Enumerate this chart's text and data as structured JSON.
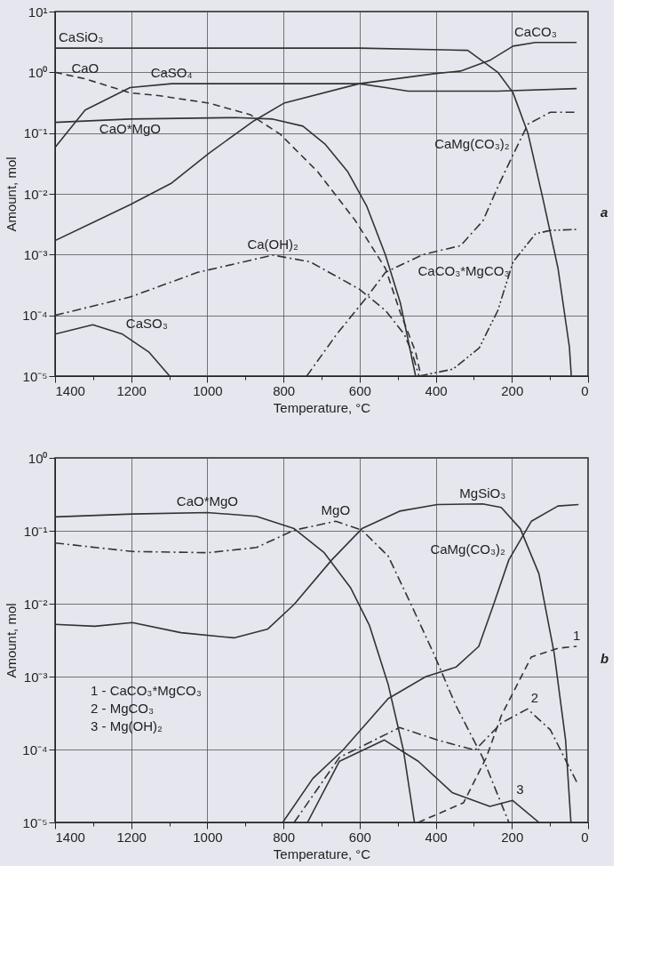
{
  "chart_data": [
    {
      "type": "line",
      "xlabel": "Temperature, °C",
      "ylabel": "Amount, mol",
      "log": "y",
      "grid": true,
      "legend": false,
      "xlim": [
        1400,
        0
      ],
      "ylim": [
        1e-05,
        10
      ],
      "xticks": [
        1400,
        {
          "value": 1300,
          "label": null
        },
        1200,
        {
          "value": 1100,
          "label": null
        },
        1000,
        {
          "value": 900,
          "label": null
        },
        800,
        {
          "value": 700,
          "label": null
        },
        600,
        {
          "value": 500,
          "label": null
        },
        400,
        {
          "value": 300,
          "label": null
        },
        200,
        {
          "value": 100,
          "label": null
        },
        0
      ],
      "yticks": [
        {
          "value": 1e-05,
          "label": "10⁻⁵"
        },
        {
          "value": 0.0001,
          "label": "10⁻⁴"
        },
        {
          "value": 0.001,
          "label": "10⁻³"
        },
        {
          "value": 0.01,
          "label": "10⁻²"
        },
        {
          "value": 0.1,
          "label": "10⁻¹"
        },
        {
          "value": 1,
          "label": "10⁰"
        },
        {
          "value": 10,
          "label": "10¹"
        }
      ],
      "annotations": [
        "a"
      ],
      "series": [
        {
          "name": "CaSiO₃",
          "color": "#333333",
          "line_style": "solid",
          "x": [
            1400,
            1000,
            600,
            316,
            237,
            197,
            158,
            118,
            79,
            49,
            44
          ],
          "values": [
            2.5,
            2.5,
            2.5,
            2.3,
            1.0,
            0.46,
            0.1,
            0.008,
            0.0006,
            3e-05,
            1e-05
          ]
        },
        {
          "name": "CaCO₃",
          "color": "#333333",
          "line_style": "solid",
          "x": [
            1400,
            1203,
            1094,
            995,
            877,
            799,
            601,
            404,
            335,
            256,
            197,
            138,
            30
          ],
          "values": [
            0.0017,
            0.0066,
            0.015,
            0.047,
            0.16,
            0.31,
            0.65,
            0.95,
            1.05,
            1.6,
            2.7,
            3.1,
            3.1
          ]
        },
        {
          "name": "CaSO₄",
          "color": "#333333",
          "line_style": "solid",
          "x": [
            1400,
            1321,
            1203,
            1094,
            601,
            532,
            473,
            237,
            30
          ],
          "values": [
            0.058,
            0.24,
            0.56,
            0.65,
            0.65,
            0.56,
            0.49,
            0.49,
            0.54
          ]
        },
        {
          "name": "CaO",
          "color": "#333333",
          "line_style": "dashed",
          "x": [
            1400,
            1321,
            1203,
            1124,
            995,
            887,
            808,
            710,
            611,
            532,
            493,
            453,
            439
          ],
          "values": [
            1.0,
            0.78,
            0.46,
            0.41,
            0.31,
            0.2,
            0.095,
            0.023,
            0.0036,
            0.00059,
            0.00011,
            2.5e-05,
            1e-05
          ]
        },
        {
          "name": "CaO*MgO",
          "color": "#333333",
          "line_style": "solid",
          "x": [
            1400,
            1203,
            926,
            828,
            749,
            690,
            631,
            581,
            532,
            493,
            453
          ],
          "values": [
            0.15,
            0.17,
            0.18,
            0.17,
            0.13,
            0.065,
            0.023,
            0.0062,
            0.00098,
            0.00016,
            1e-05
          ]
        },
        {
          "name": "Ca(OH)₂",
          "color": "#333333",
          "line_style": "dashdot",
          "x": [
            1400,
            1203,
            1025,
            828,
            730,
            601,
            532,
            483,
            463,
            444
          ],
          "values": [
            0.0001,
            0.0002,
            0.00051,
            0.00098,
            0.00076,
            0.00027,
            0.00012,
            4.9e-05,
            2.5e-05,
            1e-05
          ]
        },
        {
          "name": "CaMg(CO₃)₂",
          "color": "#333333",
          "line_style": "dashdot",
          "x": [
            739,
            660,
            581,
            532,
            434,
            335,
            276,
            237,
            197,
            158,
            99,
            30
          ],
          "values": [
            1e-05,
            4.9e-05,
            0.0002,
            0.00051,
            0.001,
            0.0014,
            0.0036,
            0.013,
            0.044,
            0.14,
            0.22,
            0.22
          ]
        },
        {
          "name": "CaCO₃*MgCO₃",
          "color": "#333333",
          "line_style": "dashdotdot",
          "x": [
            444,
            355,
            286,
            237,
            197,
            138,
            99,
            30
          ],
          "values": [
            1e-05,
            1.3e-05,
            2.9e-05,
            0.00012,
            0.00076,
            0.0022,
            0.0025,
            0.0026
          ]
        },
        {
          "name": "CaSO₃",
          "color": "#333333",
          "line_style": "solid",
          "x": [
            1400,
            1301,
            1223,
            1154,
            1099
          ],
          "values": [
            4.9e-05,
            7e-05,
            4.9e-05,
            2.5e-05,
            1e-05
          ]
        }
      ]
    },
    {
      "type": "line",
      "xlabel": "Temperature, °C",
      "ylabel": "Amount, mol",
      "log": "y",
      "grid": true,
      "legend": false,
      "xlim": [
        1400,
        0
      ],
      "ylim": [
        1e-05,
        1
      ],
      "xticks": [
        1400,
        {
          "value": 1300,
          "label": null
        },
        1200,
        {
          "value": 1100,
          "label": null
        },
        1000,
        {
          "value": 900,
          "label": null
        },
        800,
        {
          "value": 700,
          "label": null
        },
        600,
        {
          "value": 500,
          "label": null
        },
        400,
        {
          "value": 300,
          "label": null
        },
        200,
        {
          "value": 100,
          "label": null
        },
        0
      ],
      "yticks": [
        {
          "value": 1e-05,
          "label": "10⁻⁵"
        },
        {
          "value": 0.0001,
          "label": "10⁻⁴"
        },
        {
          "value": 0.001,
          "label": "10⁻³"
        },
        {
          "value": 0.01,
          "label": "10⁻²"
        },
        {
          "value": 0.1,
          "label": "10⁻¹"
        },
        {
          "value": 1,
          "label": "10⁰"
        }
      ],
      "annotations": [
        "1 - CaCO₃*MgCO₃",
        "2 - MgCO₃",
        "3 - Mg(OH)₂",
        "b"
      ],
      "series": [
        {
          "name": "CaO*MgO",
          "color": "#333333",
          "line_style": "solid",
          "x": [
            1400,
            1197,
            1000,
            871,
            772,
            693,
            624,
            574,
            525,
            485,
            456
          ],
          "values": [
            0.155,
            0.17,
            0.178,
            0.158,
            0.107,
            0.05,
            0.0166,
            0.005,
            0.00078,
            9.8e-05,
            1e-05
          ]
        },
        {
          "name": "MgO",
          "color": "#333333",
          "line_style": "dashdot",
          "x": [
            1400,
            1197,
            1000,
            871,
            772,
            663,
            594,
            525,
            465,
            406,
            347,
            277,
            208
          ],
          "values": [
            0.068,
            0.052,
            0.05,
            0.059,
            0.102,
            0.135,
            0.102,
            0.045,
            0.0098,
            0.0021,
            0.0004,
            7.8e-05,
            1e-05
          ]
        },
        {
          "name": "MgSiO₃",
          "color": "#333333",
          "line_style": "solid",
          "x": [
            1400,
            1296,
            1197,
            1069,
            930,
            841,
            772,
            673,
            594,
            495,
            396,
            277,
            228,
            178,
            129,
            89,
            59,
            45
          ],
          "values": [
            0.0052,
            0.0049,
            0.0055,
            0.004,
            0.0034,
            0.0045,
            0.0098,
            0.04,
            0.107,
            0.186,
            0.229,
            0.234,
            0.209,
            0.107,
            0.0257,
            0.0021,
            0.000135,
            1e-05
          ]
        },
        {
          "name": "CaMg(CO₃)₂",
          "color": "#333333",
          "line_style": "solid",
          "x": [
            802,
            723,
            644,
            525,
            426,
            347,
            287,
            248,
            208,
            149,
            79,
            25
          ],
          "values": [
            1e-05,
            4e-05,
            9.8e-05,
            0.0005,
            0.001,
            0.00135,
            0.0026,
            0.0098,
            0.04,
            0.135,
            0.219,
            0.229
          ]
        },
        {
          "name": "1",
          "color": "#333333",
          "line_style": "dashed",
          "x": [
            446,
            327,
            267,
            228,
            149,
            79,
            30
          ],
          "values": [
            1e-05,
            1.86e-05,
            7.8e-05,
            0.00029,
            0.00186,
            0.00245,
            0.0026
          ]
        },
        {
          "name": "2",
          "color": "#333333",
          "line_style": "dashdot",
          "x": [
            772,
            653,
            495,
            396,
            297,
            228,
            159,
            99,
            30
          ],
          "values": [
            1e-05,
            7.8e-05,
            0.0002,
            0.000135,
            9.8e-05,
            0.00023,
            0.00036,
            0.000186,
            3.6e-05
          ]
        },
        {
          "name": "3",
          "color": "#333333",
          "line_style": "solid",
          "x": [
            737,
            653,
            535,
            446,
            357,
            258,
            198,
            129
          ],
          "values": [
            1e-05,
            6.9e-05,
            0.000135,
            6.9e-05,
            2.57e-05,
            1.66e-05,
            2e-05,
            1e-05
          ]
        }
      ]
    }
  ]
}
